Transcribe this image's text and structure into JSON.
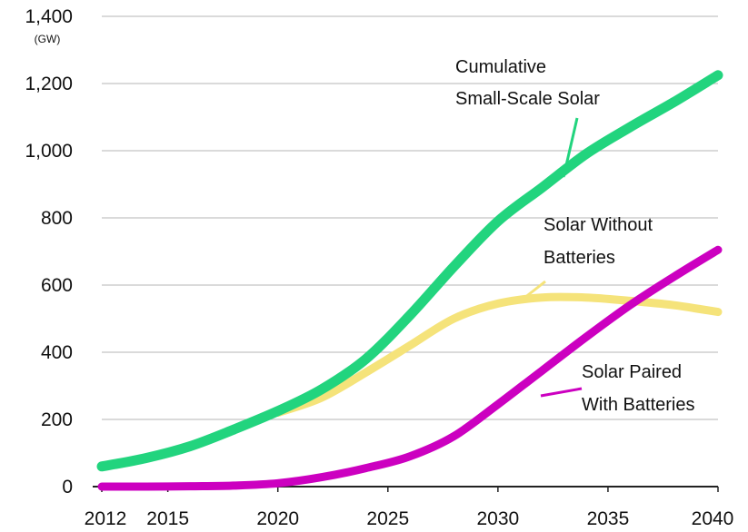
{
  "chart_data": {
    "type": "line",
    "title": "",
    "xlabel": "",
    "ylabel": "(GW)",
    "xlim": [
      2012,
      2040
    ],
    "ylim": [
      0,
      1400
    ],
    "grid": true,
    "xticks": [
      2012,
      2015,
      2020,
      2025,
      2030,
      2035,
      2040
    ],
    "yticks": [
      {
        "value": 0,
        "label": "0"
      },
      {
        "value": 200,
        "label": "200"
      },
      {
        "value": 400,
        "label": "400"
      },
      {
        "value": 600,
        "label": "600"
      },
      {
        "value": 800,
        "label": "800"
      },
      {
        "value": 1000,
        "label": "1,000"
      },
      {
        "value": 1200,
        "label": "1,200"
      },
      {
        "value": 1400,
        "label": "1,400"
      }
    ],
    "series": [
      {
        "name": "Cumulative Small-Scale Solar",
        "label_lines": [
          "Cumulative",
          "Small-Scale Solar"
        ],
        "color": "#22d47e",
        "x": [
          2012,
          2014,
          2016,
          2018,
          2020,
          2022,
          2024,
          2026,
          2028,
          2030,
          2032,
          2034,
          2036,
          2038,
          2040
        ],
        "y": [
          60,
          85,
          120,
          170,
          225,
          290,
          380,
          510,
          655,
          790,
          890,
          990,
          1070,
          1145,
          1225
        ]
      },
      {
        "name": "Solar Without Batteries",
        "label_lines": [
          "Solar Without",
          "Batteries"
        ],
        "color": "#f5e37a",
        "x": [
          2020,
          2022,
          2024,
          2026,
          2028,
          2030,
          2032,
          2034,
          2036,
          2038,
          2040
        ],
        "y": [
          220,
          265,
          340,
          420,
          500,
          545,
          563,
          563,
          553,
          540,
          520
        ]
      },
      {
        "name": "Solar Paired With Batteries",
        "label_lines": [
          "Solar Paired",
          "With Batteries"
        ],
        "color": "#cc00c0",
        "x": [
          2012,
          2014,
          2016,
          2018,
          2020,
          2022,
          2024,
          2026,
          2028,
          2030,
          2032,
          2034,
          2036,
          2038,
          2040
        ],
        "y": [
          0,
          0,
          1,
          3,
          10,
          28,
          55,
          90,
          150,
          245,
          345,
          445,
          540,
          625,
          705
        ]
      }
    ]
  }
}
